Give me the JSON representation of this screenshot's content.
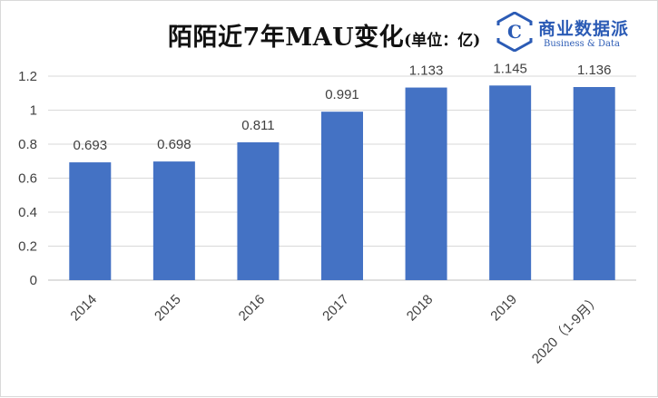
{
  "title": "陌陌近7年MAU变化",
  "title_unit": "(单位：亿)",
  "logo": {
    "name": "商业数据派",
    "subtitle": "Business & Data",
    "mark_letter": "C",
    "color": "#2b5bb5"
  },
  "chart_data": {
    "type": "bar",
    "title": "陌陌近7年MAU变化",
    "unit": "(单位：亿)",
    "categories": [
      "2014",
      "2015",
      "2016",
      "2017",
      "2018",
      "2019",
      "2020（1-9月）"
    ],
    "values": [
      0.693,
      0.698,
      0.811,
      0.991,
      1.133,
      1.145,
      1.136
    ],
    "data_labels": [
      "0.693",
      "0.698",
      "0.811",
      "0.991",
      "1.133",
      "1.145",
      "1.136"
    ],
    "ylim": [
      0,
      1.2
    ],
    "yticks": [
      "0",
      "0.2",
      "0.4",
      "0.6",
      "0.8",
      "1",
      "1.2"
    ],
    "grid": true,
    "legend": "none",
    "bar_color": "#4472c4"
  }
}
